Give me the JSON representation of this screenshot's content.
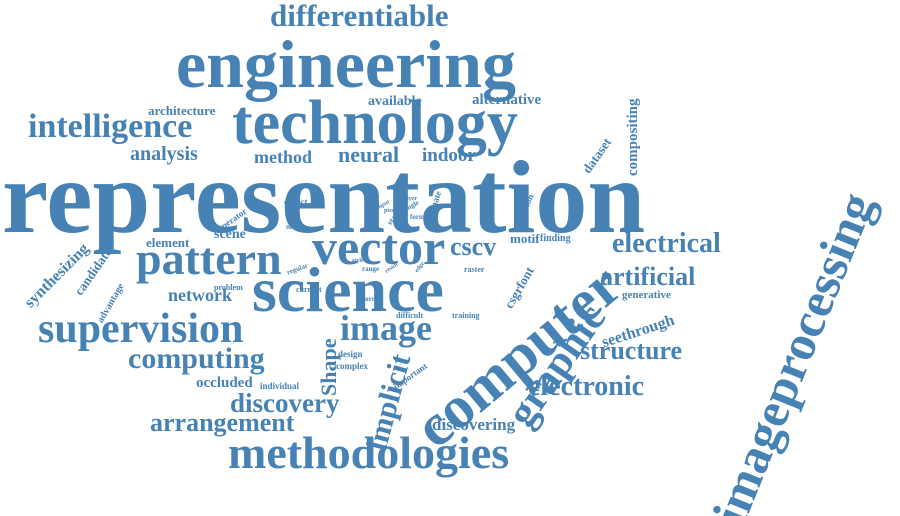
{
  "color": "#4682b4",
  "words": [
    "representation",
    "engineering",
    "technology",
    "science",
    "imageprocessing",
    "computer",
    "methodologies",
    "vector",
    "pattern",
    "supervision",
    "image",
    "graphic",
    "differentiable",
    "intelligence",
    "computing",
    "electrical",
    "electronic",
    "discovery",
    "arrangement",
    "structure",
    "artificial",
    "implicit",
    "neural",
    "analysis",
    "method",
    "indoor",
    "cscv",
    "network",
    "Shape",
    "seethrough",
    "synthesizing",
    "discovering",
    "compositing",
    "alternative",
    "available",
    "architecture",
    "occluded",
    "dataset",
    "element",
    "scene",
    "candidate",
    "csgrfont",
    "motif",
    "generative",
    "advantage",
    "object",
    "operator",
    "evaluate",
    "function",
    "finding",
    "important",
    "individual",
    "complex",
    "design",
    "difficult",
    "training",
    "current",
    "problem",
    "regular",
    "raster",
    "range",
    "corner",
    "form",
    "state",
    "single",
    "feature",
    "model",
    "style",
    "result",
    "edge",
    "input",
    "case",
    "pixel",
    "layer"
  ]
}
